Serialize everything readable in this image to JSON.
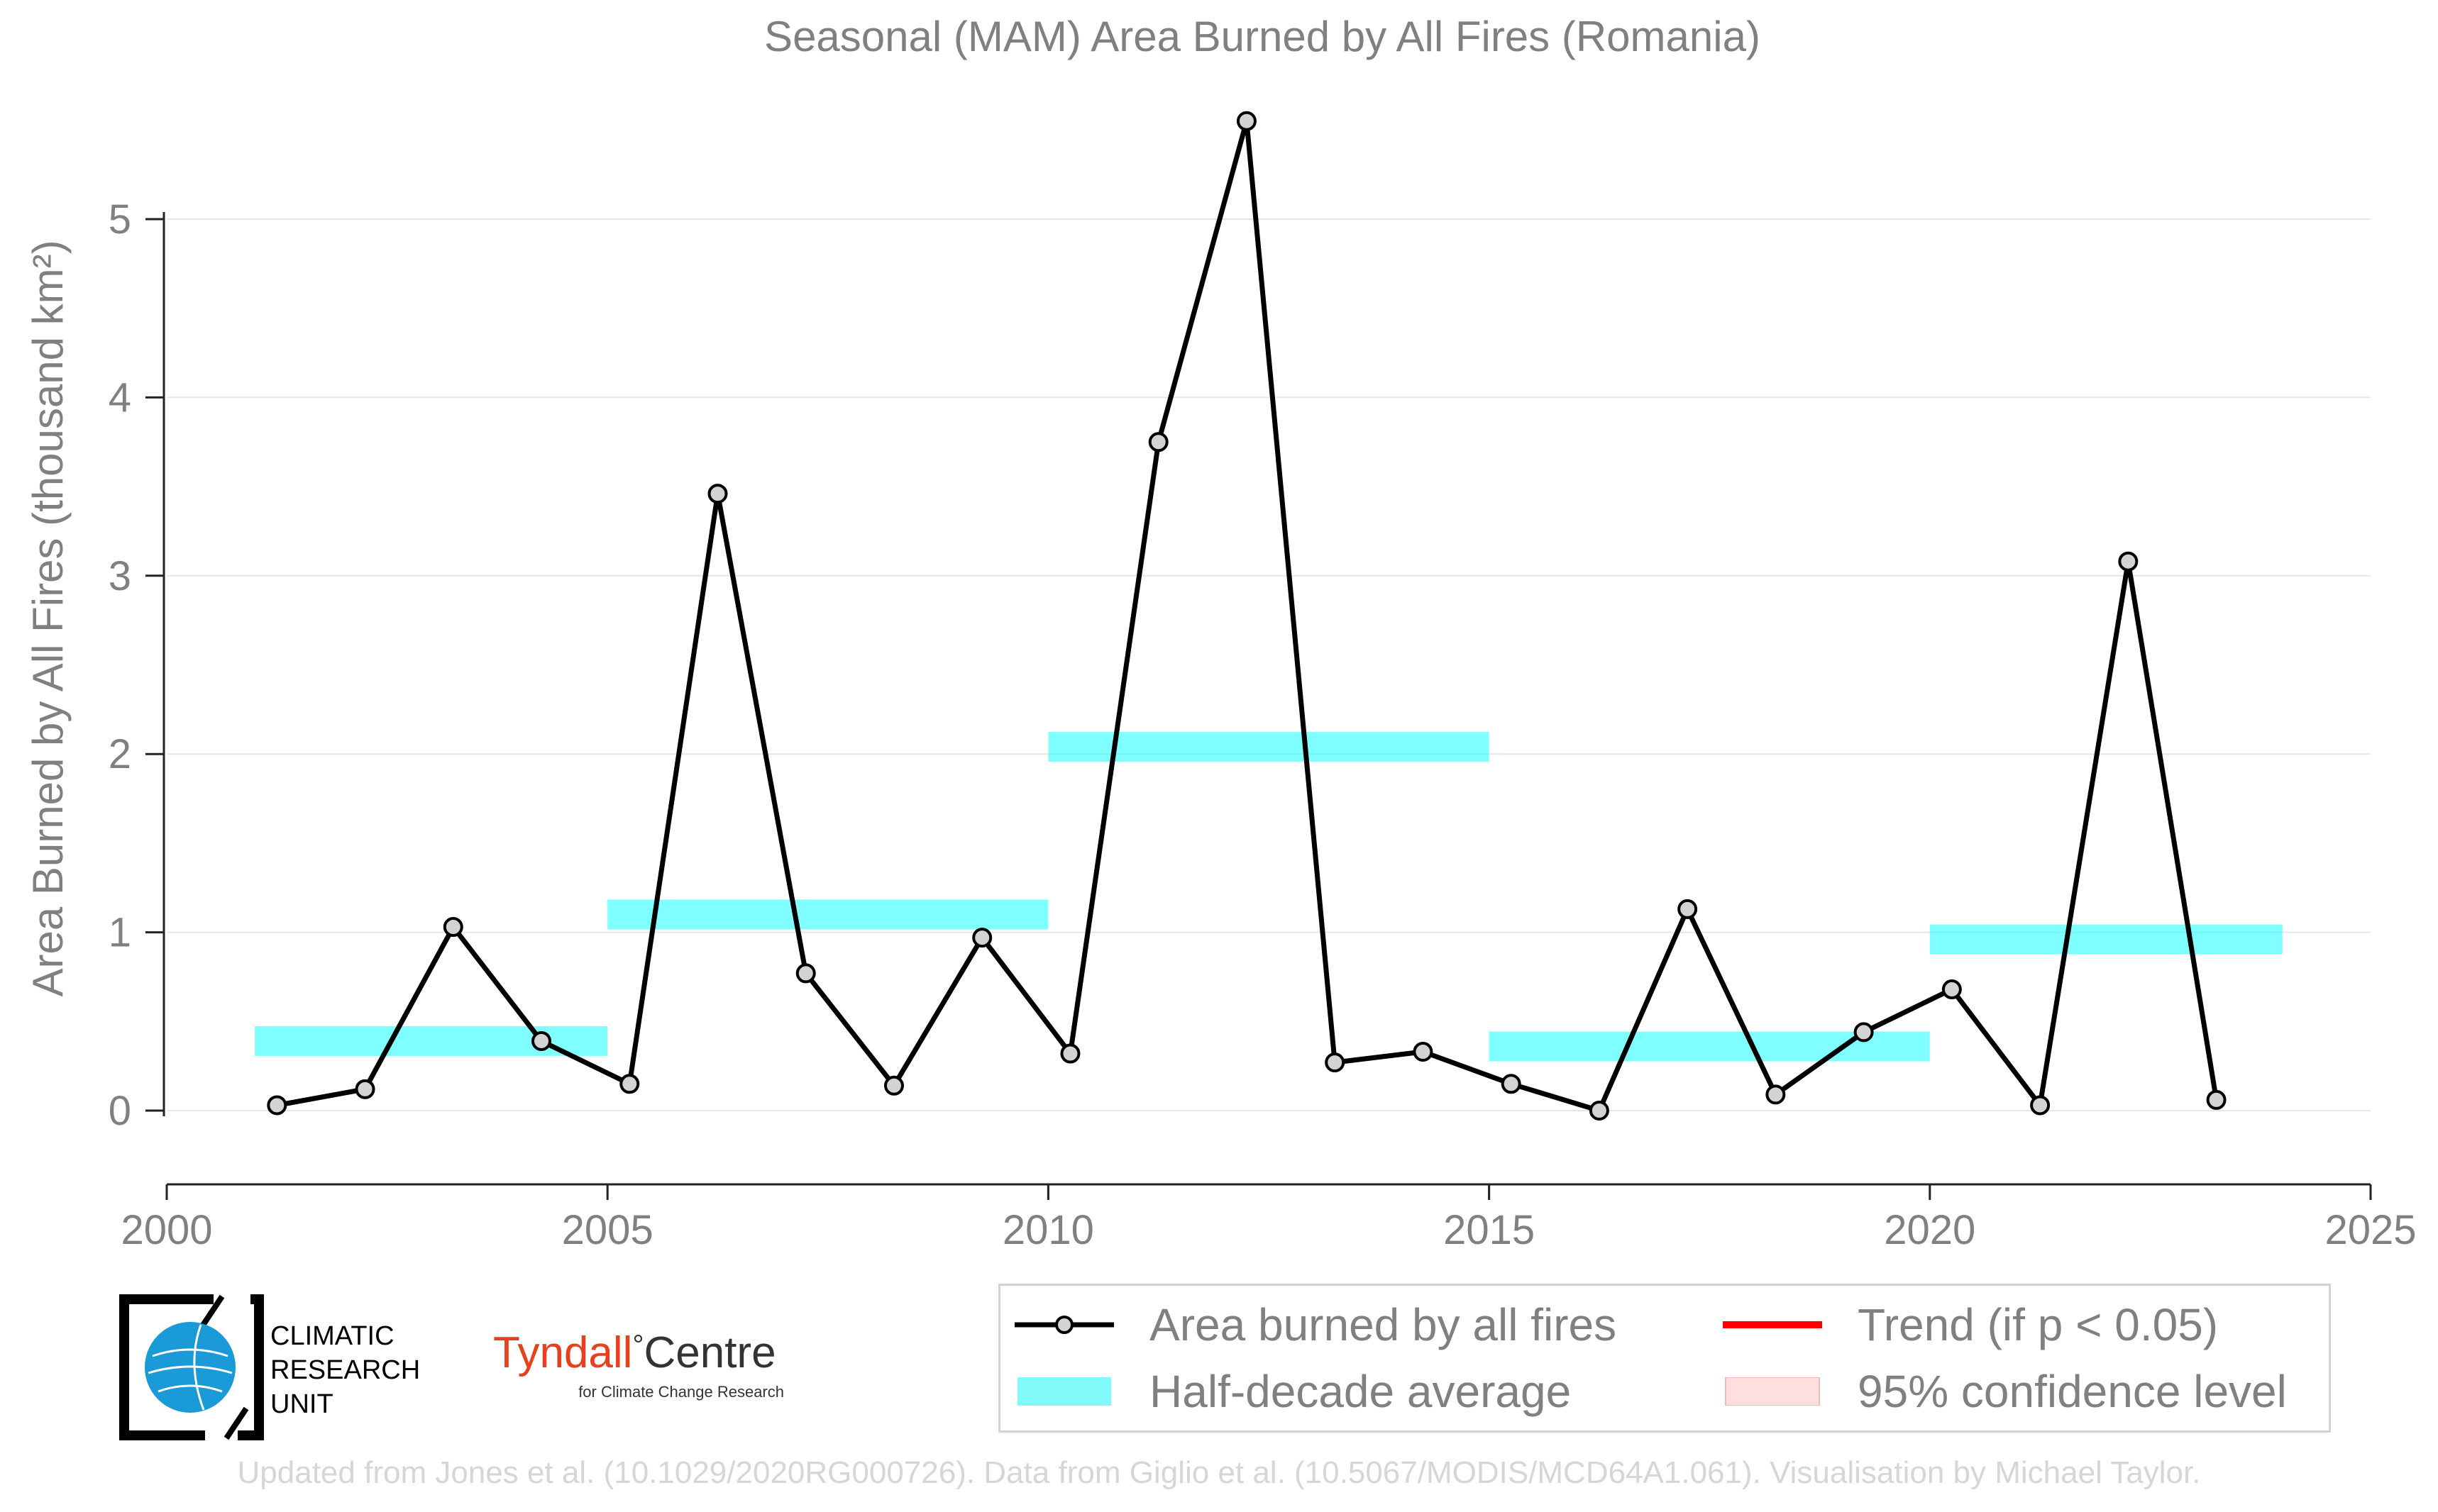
{
  "chart_data": {
    "type": "line",
    "title": "Seasonal (MAM) Area Burned by All Fires (Romania)",
    "ylabel": "Area Burned by All Fires (thousand km²)",
    "xlabel": "",
    "xlim": [
      2000,
      2025
    ],
    "ylim": [
      -0.42,
      5.6
    ],
    "x_ticks": [
      2000,
      2005,
      2010,
      2015,
      2020,
      2025
    ],
    "y_ticks": [
      0,
      1,
      2,
      3,
      4,
      5
    ],
    "grid": "horizontal",
    "legend_position": "bottom-right",
    "series": [
      {
        "name": "Area burned by all fires",
        "color": "#000000",
        "marker_fill": "#d3d3d3",
        "x": [
          2001.25,
          2002.25,
          2003.25,
          2004.25,
          2005.25,
          2006.25,
          2007.25,
          2008.25,
          2009.25,
          2010.25,
          2011.25,
          2012.25,
          2013.25,
          2014.25,
          2015.25,
          2016.25,
          2017.25,
          2018.25,
          2019.25,
          2020.25,
          2021.25,
          2022.25,
          2023.25
        ],
        "values": [
          0.03,
          0.12,
          1.03,
          0.39,
          0.15,
          3.46,
          0.77,
          0.14,
          0.97,
          0.32,
          3.75,
          5.55,
          0.27,
          0.33,
          0.15,
          0.0,
          1.13,
          0.09,
          0.44,
          0.68,
          0.03,
          3.08,
          0.06
        ]
      }
    ],
    "half_decade_average": {
      "name": "Half-decade average",
      "color": "#00ffff",
      "segments": [
        {
          "x0": 2001,
          "x1": 2005,
          "value": 0.39
        },
        {
          "x0": 2005,
          "x1": 2010,
          "value": 1.1
        },
        {
          "x0": 2010,
          "x1": 2015,
          "value": 2.04
        },
        {
          "x0": 2015,
          "x1": 2020,
          "value": 0.36
        },
        {
          "x0": 2020,
          "x1": 2024,
          "value": 0.96
        }
      ]
    },
    "legend": {
      "line_label": "Area burned by all fires",
      "band_label": "Half-decade average",
      "trend_label": "Trend (if p < 0.05)",
      "ci_label": "95% confidence level",
      "trend_color": "#ff0000",
      "ci_color": "#ffdede"
    }
  },
  "logos": {
    "cru": {
      "line1": "CLIMATIC",
      "line2": "RESEARCH",
      "line3": "UNIT"
    },
    "tyndall": {
      "name": "Tyndall",
      "degree": "°",
      "suffix": "Centre",
      "tagline": "for Climate Change Research",
      "color": "#e8401c"
    }
  },
  "footer": "Updated from Jones et al. (10.1029/2020RG000726). Data from Giglio et al. (10.5067/MODIS/MCD64A1.061). Visualisation by Michael Taylor."
}
